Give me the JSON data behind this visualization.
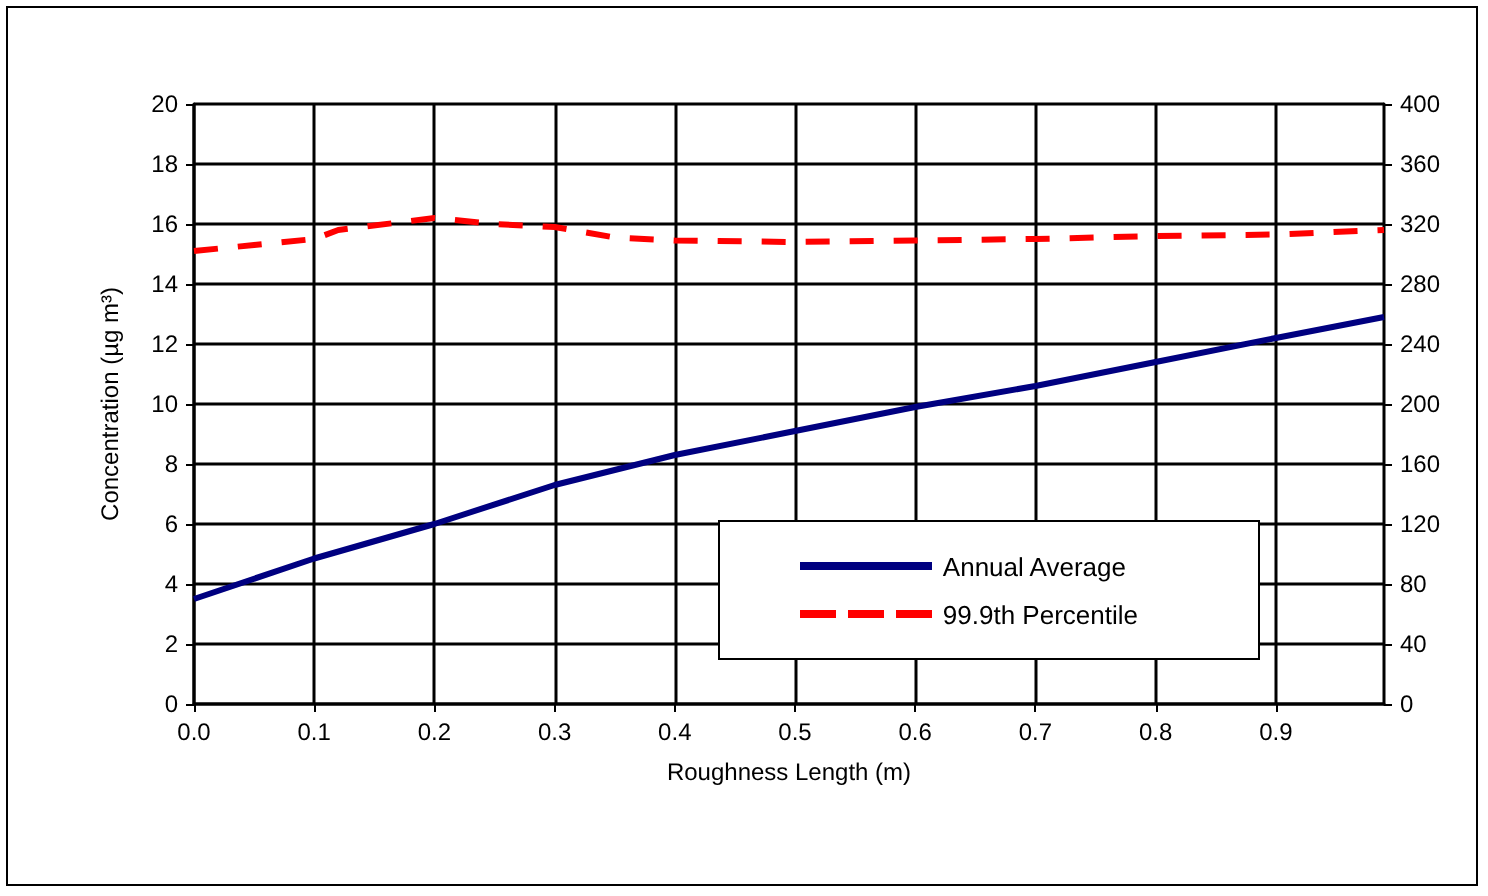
{
  "chart_data": {
    "type": "line",
    "xlabel": "Roughness Length (m)",
    "ylabel": "Concentration (µg m³)",
    "xlim": [
      0,
      0.99
    ],
    "xticks": [
      {
        "value": 0,
        "label": "0.0"
      },
      0.1,
      0.2,
      0.3,
      0.4,
      0.5,
      0.6,
      0.7,
      0.8,
      0.9
    ],
    "ylim": [
      0,
      20
    ],
    "yticks": [
      0,
      2,
      4,
      6,
      8,
      10,
      12,
      14,
      16,
      18,
      20
    ],
    "y2lim": [
      0,
      400
    ],
    "y2ticks": [
      0,
      40,
      80,
      120,
      160,
      200,
      240,
      280,
      320,
      360,
      400
    ],
    "grid": true,
    "legend": "bottom right",
    "marker": "none",
    "x": [
      0,
      0.1,
      0.2,
      0.3,
      0.4,
      0.5,
      0.6,
      0.7,
      0.8,
      0.9,
      0.99
    ],
    "series": [
      {
        "name": "Annual Average",
        "color": "#000080",
        "line_style": "solid",
        "values": [
          3.5,
          4.85,
          6.0,
          7.3,
          8.3,
          9.1,
          9.9,
          10.6,
          11.4,
          12.2,
          12.9
        ]
      },
      {
        "name": "99.9th Percentile",
        "color": "#ff0000",
        "line_style": "dashed",
        "axis": "y2",
        "x": [
          0,
          0.05,
          0.1,
          0.12,
          0.2,
          0.25,
          0.3,
          0.35,
          0.4,
          0.5,
          0.6,
          0.7,
          0.8,
          0.9,
          0.99
        ],
        "values": [
          302,
          306,
          310,
          316,
          324,
          320,
          318,
          311,
          309,
          308,
          309,
          310,
          312,
          313,
          316
        ]
      }
    ]
  }
}
